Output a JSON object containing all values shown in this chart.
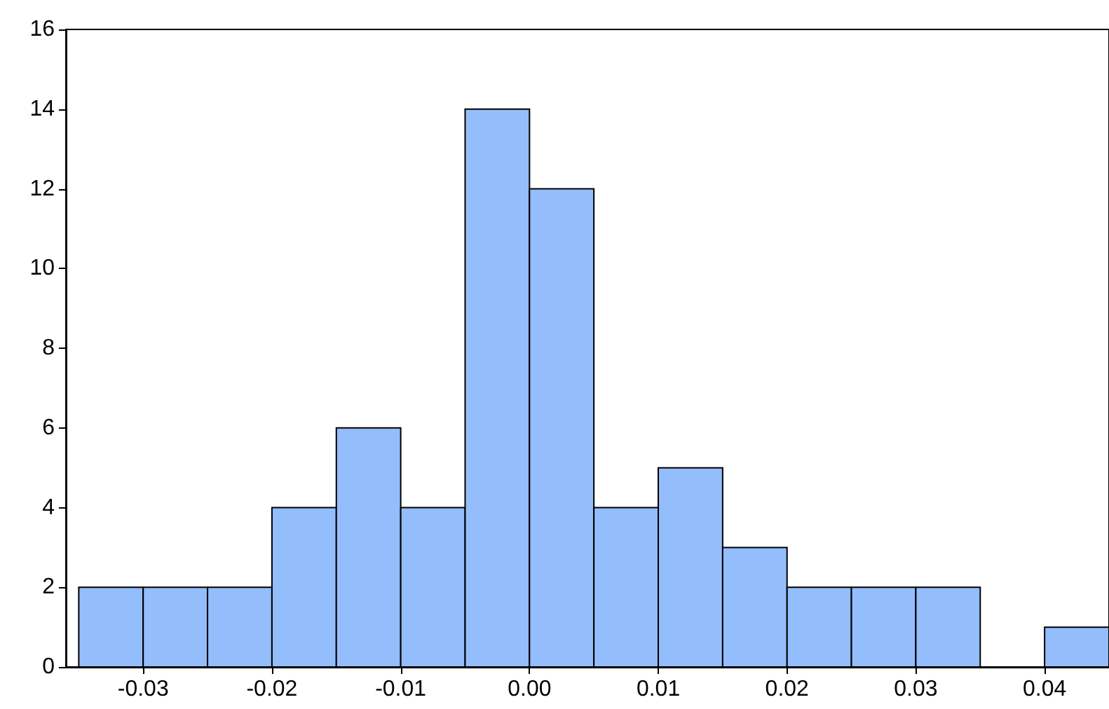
{
  "chart_data": {
    "type": "histogram",
    "bins": [
      -0.035,
      -0.03,
      -0.025,
      -0.02,
      -0.015,
      -0.01,
      -0.005,
      0,
      0.005,
      0.01,
      0.015,
      0.02,
      0.025,
      0.03,
      0.035,
      0.04,
      0.045
    ],
    "values": [
      2,
      2,
      2,
      4,
      6,
      4,
      14,
      12,
      4,
      5,
      3,
      2,
      2,
      2,
      0,
      1
    ],
    "color": "#94bdfb",
    "xlim": [
      -0.036,
      0.045
    ],
    "xticks": [
      -0.03,
      -0.02,
      -0.01,
      {
        "value": 0,
        "label": "0.00"
      },
      0.01,
      0.02,
      0.03,
      0.04
    ],
    "ylim": [
      0,
      16
    ],
    "yticks": [
      0,
      2,
      4,
      6,
      8,
      10,
      12,
      14,
      16
    ],
    "grid": false
  }
}
